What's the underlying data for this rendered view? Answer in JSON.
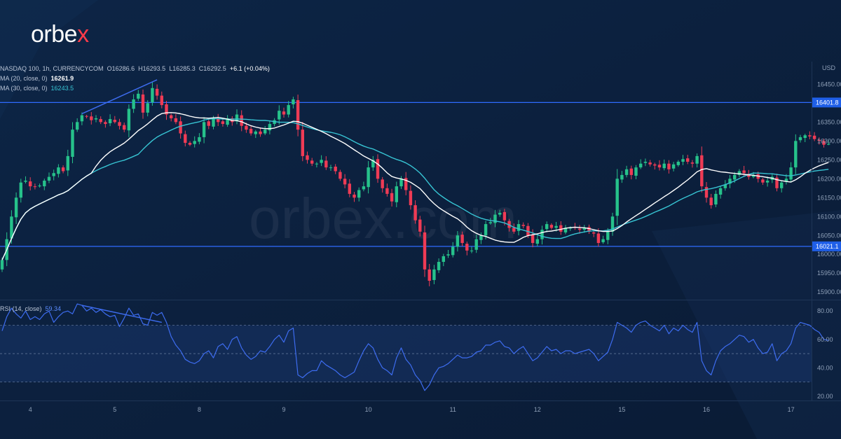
{
  "brand": {
    "logo_text": "orbe",
    "logo_x": "x",
    "watermark": "orbex.com"
  },
  "header": {
    "symbol": "NASDAQ 100, 1h, CURRENCYCOM",
    "open_label": "O",
    "open": "16286.6",
    "high_label": "H",
    "high": "16293.5",
    "low_label": "L",
    "low": "16285.3",
    "close_label": "C",
    "close": "16292.5",
    "change": "+6.1 (+0.04%)",
    "ma20_label": "MA (20, close, 0)",
    "ma20_value": "16261.9",
    "ma30_label": "MA (30, close, 0)",
    "ma30_value": "16243.5",
    "rsi_label": "RSI (14, close)",
    "rsi_value": "59.34"
  },
  "colors": {
    "background": "#0b1f3b",
    "bull": "#26c28b",
    "bear": "#ef3b55",
    "ma20": "#ffffff",
    "ma30": "#37c4d3",
    "rsi": "#3d6cf0",
    "hline": "#2f6bff",
    "trendline": "#3d6cf0"
  },
  "chart_data": [
    {
      "type": "candlestick",
      "currency": "USD",
      "y_ticks": [
        15900,
        15950,
        16000,
        16050,
        16100,
        16150,
        16200,
        16250,
        16300,
        16350,
        16400,
        16450
      ],
      "ylim": [
        15880,
        16510
      ],
      "x_ticks": [
        {
          "label": "4",
          "i": 6
        },
        {
          "label": "5",
          "i": 24
        },
        {
          "label": "8",
          "i": 42
        },
        {
          "label": "9",
          "i": 60
        },
        {
          "label": "10",
          "i": 78
        },
        {
          "label": "11",
          "i": 96
        },
        {
          "label": "12",
          "i": 114
        },
        {
          "label": "15",
          "i": 132
        },
        {
          "label": "16",
          "i": 150
        },
        {
          "label": "17",
          "i": 168
        }
      ],
      "levels": [
        {
          "value": 16401.8,
          "label": "16401.8"
        },
        {
          "value": 16021.1,
          "label": "16021.1"
        }
      ],
      "trendline": {
        "from": {
          "i": 17,
          "v": 16372
        },
        "to": {
          "i": 33,
          "v": 16462
        }
      },
      "close": [
        15985,
        16040,
        16100,
        16150,
        16190,
        16195,
        16180,
        16178,
        16182,
        16195,
        16205,
        16215,
        16230,
        16220,
        16260,
        16330,
        16350,
        16368,
        16365,
        16355,
        16360,
        16350,
        16345,
        16358,
        16350,
        16340,
        16330,
        16385,
        16410,
        16425,
        16375,
        16400,
        16440,
        16420,
        16395,
        16370,
        16360,
        16350,
        16320,
        16295,
        16290,
        16300,
        16310,
        16350,
        16340,
        16360,
        16350,
        16345,
        16360,
        16350,
        16370,
        16340,
        16330,
        16320,
        16325,
        16318,
        16330,
        16345,
        16355,
        16380,
        16370,
        16395,
        16410,
        16330,
        16260,
        16250,
        16240,
        16240,
        16250,
        16230,
        16230,
        16220,
        16200,
        16185,
        16160,
        16150,
        16170,
        16180,
        16230,
        16250,
        16200,
        16175,
        16160,
        16140,
        16180,
        16200,
        16170,
        16130,
        16090,
        16060,
        15960,
        15930,
        15960,
        15980,
        15995,
        16000,
        16020,
        16050,
        16030,
        16010,
        16010,
        16040,
        16050,
        16080,
        16085,
        16105,
        16110,
        16090,
        16070,
        16060,
        16080,
        16075,
        16050,
        16030,
        16040,
        16065,
        16080,
        16070,
        16075,
        16060,
        16070,
        16070,
        16070,
        16065,
        16070,
        16060,
        16055,
        16030,
        16040,
        16060,
        16100,
        16200,
        16210,
        16225,
        16210,
        16230,
        16240,
        16245,
        16238,
        16235,
        16230,
        16240,
        16225,
        16238,
        16245,
        16252,
        16245,
        16240,
        16260,
        16180,
        16150,
        16130,
        16160,
        16175,
        16185,
        16200,
        16210,
        16220,
        16215,
        16205,
        16210,
        16200,
        16190,
        16195,
        16205,
        16175,
        16190,
        16200,
        16230,
        16300,
        16310,
        16315,
        16312,
        16305,
        16300,
        16290,
        16292
      ]
    },
    {
      "type": "line",
      "name": "RSI (14, close)",
      "y_ticks": [
        20,
        40,
        60,
        80
      ],
      "ylim": [
        17,
        87
      ],
      "band": [
        30,
        70
      ],
      "midline": 50,
      "trendline": {
        "from": {
          "i": 17,
          "v": 84
        },
        "to": {
          "i": 34,
          "v": 72
        }
      },
      "values": [
        66,
        76,
        82,
        78,
        75,
        80,
        74,
        76,
        74,
        78,
        80,
        72,
        76,
        79,
        80,
        78,
        85,
        84,
        80,
        82,
        79,
        81,
        78,
        76,
        77,
        69,
        75,
        82,
        77,
        78,
        71,
        70,
        79,
        77,
        79,
        72,
        62,
        56,
        52,
        46,
        44,
        43,
        45,
        50,
        52,
        47,
        55,
        57,
        53,
        60,
        62,
        54,
        49,
        46,
        48,
        52,
        51,
        55,
        60,
        63,
        58,
        66,
        68,
        35,
        33,
        36,
        38,
        38,
        45,
        42,
        40,
        38,
        35,
        33,
        35,
        37,
        45,
        52,
        57,
        54,
        46,
        40,
        38,
        35,
        47,
        54,
        46,
        42,
        35,
        31,
        24,
        28,
        35,
        40,
        41,
        43,
        46,
        49,
        47,
        47,
        48,
        51,
        52,
        56,
        56,
        58,
        59,
        55,
        54,
        50,
        53,
        55,
        50,
        45,
        47,
        51,
        55,
        52,
        53,
        50,
        52,
        52,
        50,
        51,
        52,
        53,
        50,
        45,
        48,
        51,
        60,
        72,
        70,
        68,
        65,
        70,
        72,
        73,
        70,
        68,
        66,
        70,
        64,
        68,
        66,
        70,
        67,
        65,
        72,
        45,
        38,
        35,
        45,
        52,
        55,
        57,
        60,
        63,
        62,
        58,
        60,
        54,
        50,
        51,
        57,
        45,
        50,
        52,
        57,
        68,
        72,
        71,
        70,
        67,
        65,
        60,
        59.34
      ]
    }
  ]
}
